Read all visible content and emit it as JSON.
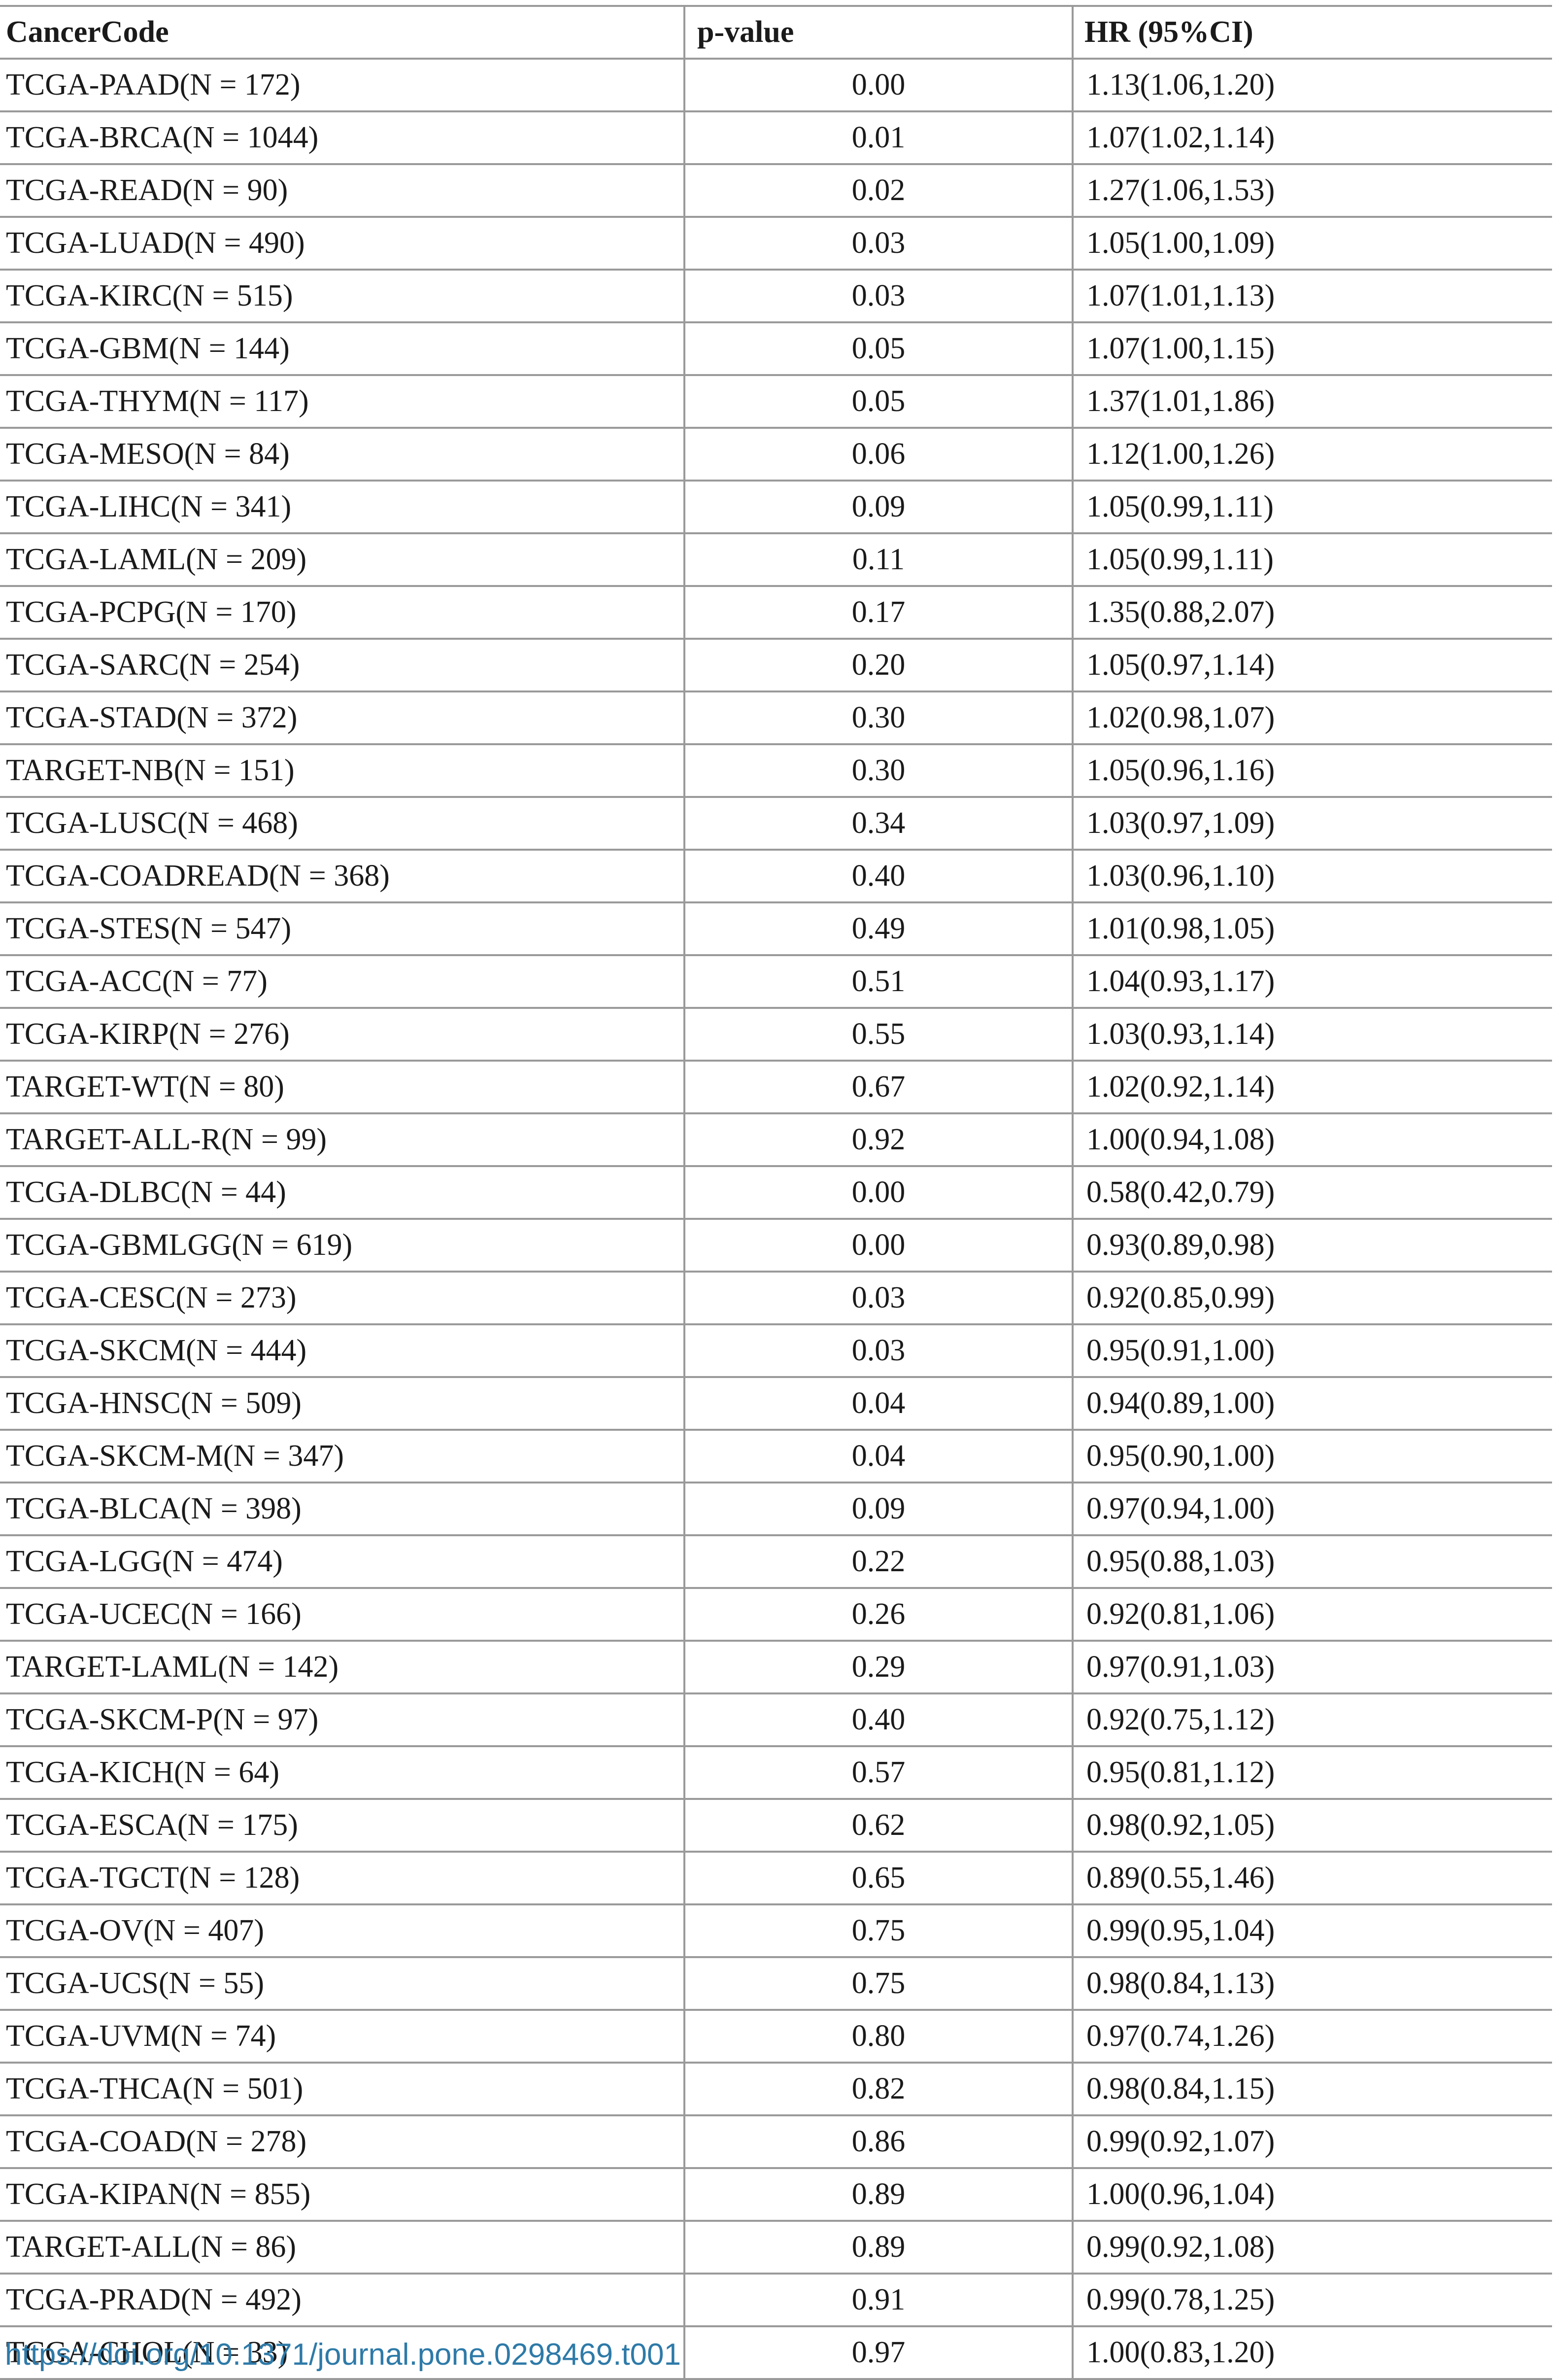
{
  "table": {
    "headers": [
      "CancerCode",
      "p-value",
      "HR (95%CI)"
    ],
    "rows": [
      [
        "TCGA-PAAD(N = 172)",
        "0.00",
        "1.13(1.06,1.20)"
      ],
      [
        "TCGA-BRCA(N = 1044)",
        "0.01",
        "1.07(1.02,1.14)"
      ],
      [
        "TCGA-READ(N = 90)",
        "0.02",
        "1.27(1.06,1.53)"
      ],
      [
        "TCGA-LUAD(N = 490)",
        "0.03",
        "1.05(1.00,1.09)"
      ],
      [
        "TCGA-KIRC(N = 515)",
        "0.03",
        "1.07(1.01,1.13)"
      ],
      [
        "TCGA-GBM(N = 144)",
        "0.05",
        "1.07(1.00,1.15)"
      ],
      [
        "TCGA-THYM(N = 117)",
        "0.05",
        "1.37(1.01,1.86)"
      ],
      [
        "TCGA-MESO(N = 84)",
        "0.06",
        "1.12(1.00,1.26)"
      ],
      [
        "TCGA-LIHC(N = 341)",
        "0.09",
        "1.05(0.99,1.11)"
      ],
      [
        "TCGA-LAML(N = 209)",
        "0.11",
        "1.05(0.99,1.11)"
      ],
      [
        "TCGA-PCPG(N = 170)",
        "0.17",
        "1.35(0.88,2.07)"
      ],
      [
        "TCGA-SARC(N = 254)",
        "0.20",
        "1.05(0.97,1.14)"
      ],
      [
        "TCGA-STAD(N = 372)",
        "0.30",
        "1.02(0.98,1.07)"
      ],
      [
        "TARGET-NB(N = 151)",
        "0.30",
        "1.05(0.96,1.16)"
      ],
      [
        "TCGA-LUSC(N = 468)",
        "0.34",
        "1.03(0.97,1.09)"
      ],
      [
        "TCGA-COADREAD(N = 368)",
        "0.40",
        "1.03(0.96,1.10)"
      ],
      [
        "TCGA-STES(N = 547)",
        "0.49",
        "1.01(0.98,1.05)"
      ],
      [
        "TCGA-ACC(N = 77)",
        "0.51",
        "1.04(0.93,1.17)"
      ],
      [
        "TCGA-KIRP(N = 276)",
        "0.55",
        "1.03(0.93,1.14)"
      ],
      [
        "TARGET-WT(N = 80)",
        "0.67",
        "1.02(0.92,1.14)"
      ],
      [
        "TARGET-ALL-R(N = 99)",
        "0.92",
        "1.00(0.94,1.08)"
      ],
      [
        "TCGA-DLBC(N = 44)",
        "0.00",
        "0.58(0.42,0.79)"
      ],
      [
        "TCGA-GBMLGG(N = 619)",
        "0.00",
        "0.93(0.89,0.98)"
      ],
      [
        "TCGA-CESC(N = 273)",
        "0.03",
        "0.92(0.85,0.99)"
      ],
      [
        "TCGA-SKCM(N = 444)",
        "0.03",
        "0.95(0.91,1.00)"
      ],
      [
        "TCGA-HNSC(N = 509)",
        "0.04",
        "0.94(0.89,1.00)"
      ],
      [
        "TCGA-SKCM-M(N = 347)",
        "0.04",
        "0.95(0.90,1.00)"
      ],
      [
        "TCGA-BLCA(N = 398)",
        "0.09",
        "0.97(0.94,1.00)"
      ],
      [
        "TCGA-LGG(N = 474)",
        "0.22",
        "0.95(0.88,1.03)"
      ],
      [
        "TCGA-UCEC(N = 166)",
        "0.26",
        "0.92(0.81,1.06)"
      ],
      [
        "TARGET-LAML(N = 142)",
        "0.29",
        "0.97(0.91,1.03)"
      ],
      [
        "TCGA-SKCM-P(N = 97)",
        "0.40",
        "0.92(0.75,1.12)"
      ],
      [
        "TCGA-KICH(N = 64)",
        "0.57",
        "0.95(0.81,1.12)"
      ],
      [
        "TCGA-ESCA(N = 175)",
        "0.62",
        "0.98(0.92,1.05)"
      ],
      [
        "TCGA-TGCT(N = 128)",
        "0.65",
        "0.89(0.55,1.46)"
      ],
      [
        "TCGA-OV(N = 407)",
        "0.75",
        "0.99(0.95,1.04)"
      ],
      [
        "TCGA-UCS(N = 55)",
        "0.75",
        "0.98(0.84,1.13)"
      ],
      [
        "TCGA-UVM(N = 74)",
        "0.80",
        "0.97(0.74,1.26)"
      ],
      [
        "TCGA-THCA(N = 501)",
        "0.82",
        "0.98(0.84,1.15)"
      ],
      [
        "TCGA-COAD(N = 278)",
        "0.86",
        "0.99(0.92,1.07)"
      ],
      [
        "TCGA-KIPAN(N = 855)",
        "0.89",
        "1.00(0.96,1.04)"
      ],
      [
        "TARGET-ALL(N = 86)",
        "0.89",
        "0.99(0.92,1.08)"
      ],
      [
        "TCGA-PRAD(N = 492)",
        "0.91",
        "0.99(0.78,1.25)"
      ],
      [
        "TCGA-CHOL(N = 33)",
        "0.97",
        "1.00(0.83,1.20)"
      ]
    ]
  },
  "doi_link": "https://doi.org/10.1371/journal.pone.0298469.t001"
}
